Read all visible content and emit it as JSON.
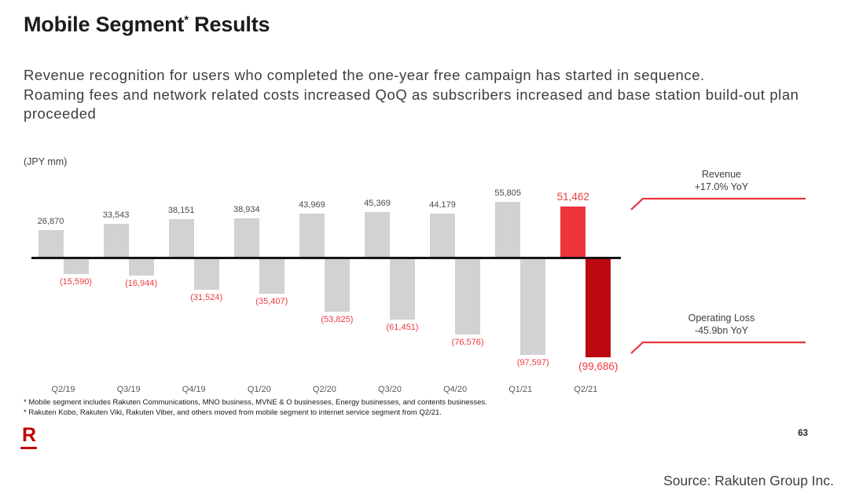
{
  "title": {
    "main": "Mobile Segment",
    "sup": "*",
    "rest": " Results"
  },
  "intro": {
    "line1": "Revenue recognition for users who completed the one-year free campaign has started in sequence.",
    "line2": "Roaming fees and network related costs increased QoQ as subscribers increased and base station build-out plan proceeded"
  },
  "chart_data": {
    "type": "bar",
    "title": "Mobile Segment Results",
    "unit_label": "(JPY mm)",
    "categories": [
      "Q2/19",
      "Q3/19",
      "Q4/19",
      "Q1/20",
      "Q2/20",
      "Q3/20",
      "Q4/20",
      "Q1/21",
      "Q2/21"
    ],
    "series": [
      {
        "name": "Revenue",
        "values": [
          26870,
          33543,
          38151,
          38934,
          43969,
          45369,
          44179,
          55805,
          51462
        ]
      },
      {
        "name": "Operating Loss",
        "values": [
          -15590,
          -16944,
          -31524,
          -35407,
          -53825,
          -61451,
          -76576,
          -97597,
          -99686
        ]
      }
    ],
    "highlight_category": "Q2/21",
    "legend": "none",
    "grid": false,
    "baseline": 0
  },
  "annotations": {
    "revenue": {
      "line1": "Revenue",
      "line2": "+17.0% YoY"
    },
    "operating_loss": {
      "line1": "Operating Loss",
      "line2": "-45.9bn YoY"
    }
  },
  "footnotes": {
    "line1": "* Mobile segment includes Rakuten Communications, MNO business, MVNE & O businesses, Energy businesses, and contents businesses.",
    "line2": "* Rakuten Kobo, Rakuten Viki, Rakuten Viber, and others moved from mobile segment to internet service segment from Q2/21."
  },
  "footer": {
    "logo": "R",
    "page_number": "63",
    "source": "Source: Rakuten Group Inc."
  },
  "colors": {
    "bar_gray": "#d2d2d2",
    "bar_red": "#ee343b",
    "bar_dark_red": "#bd0711",
    "label_red": "#ef3a41",
    "callout_red": "#e8353d",
    "logo_red": "#bf0000",
    "axis_black": "#141414"
  }
}
